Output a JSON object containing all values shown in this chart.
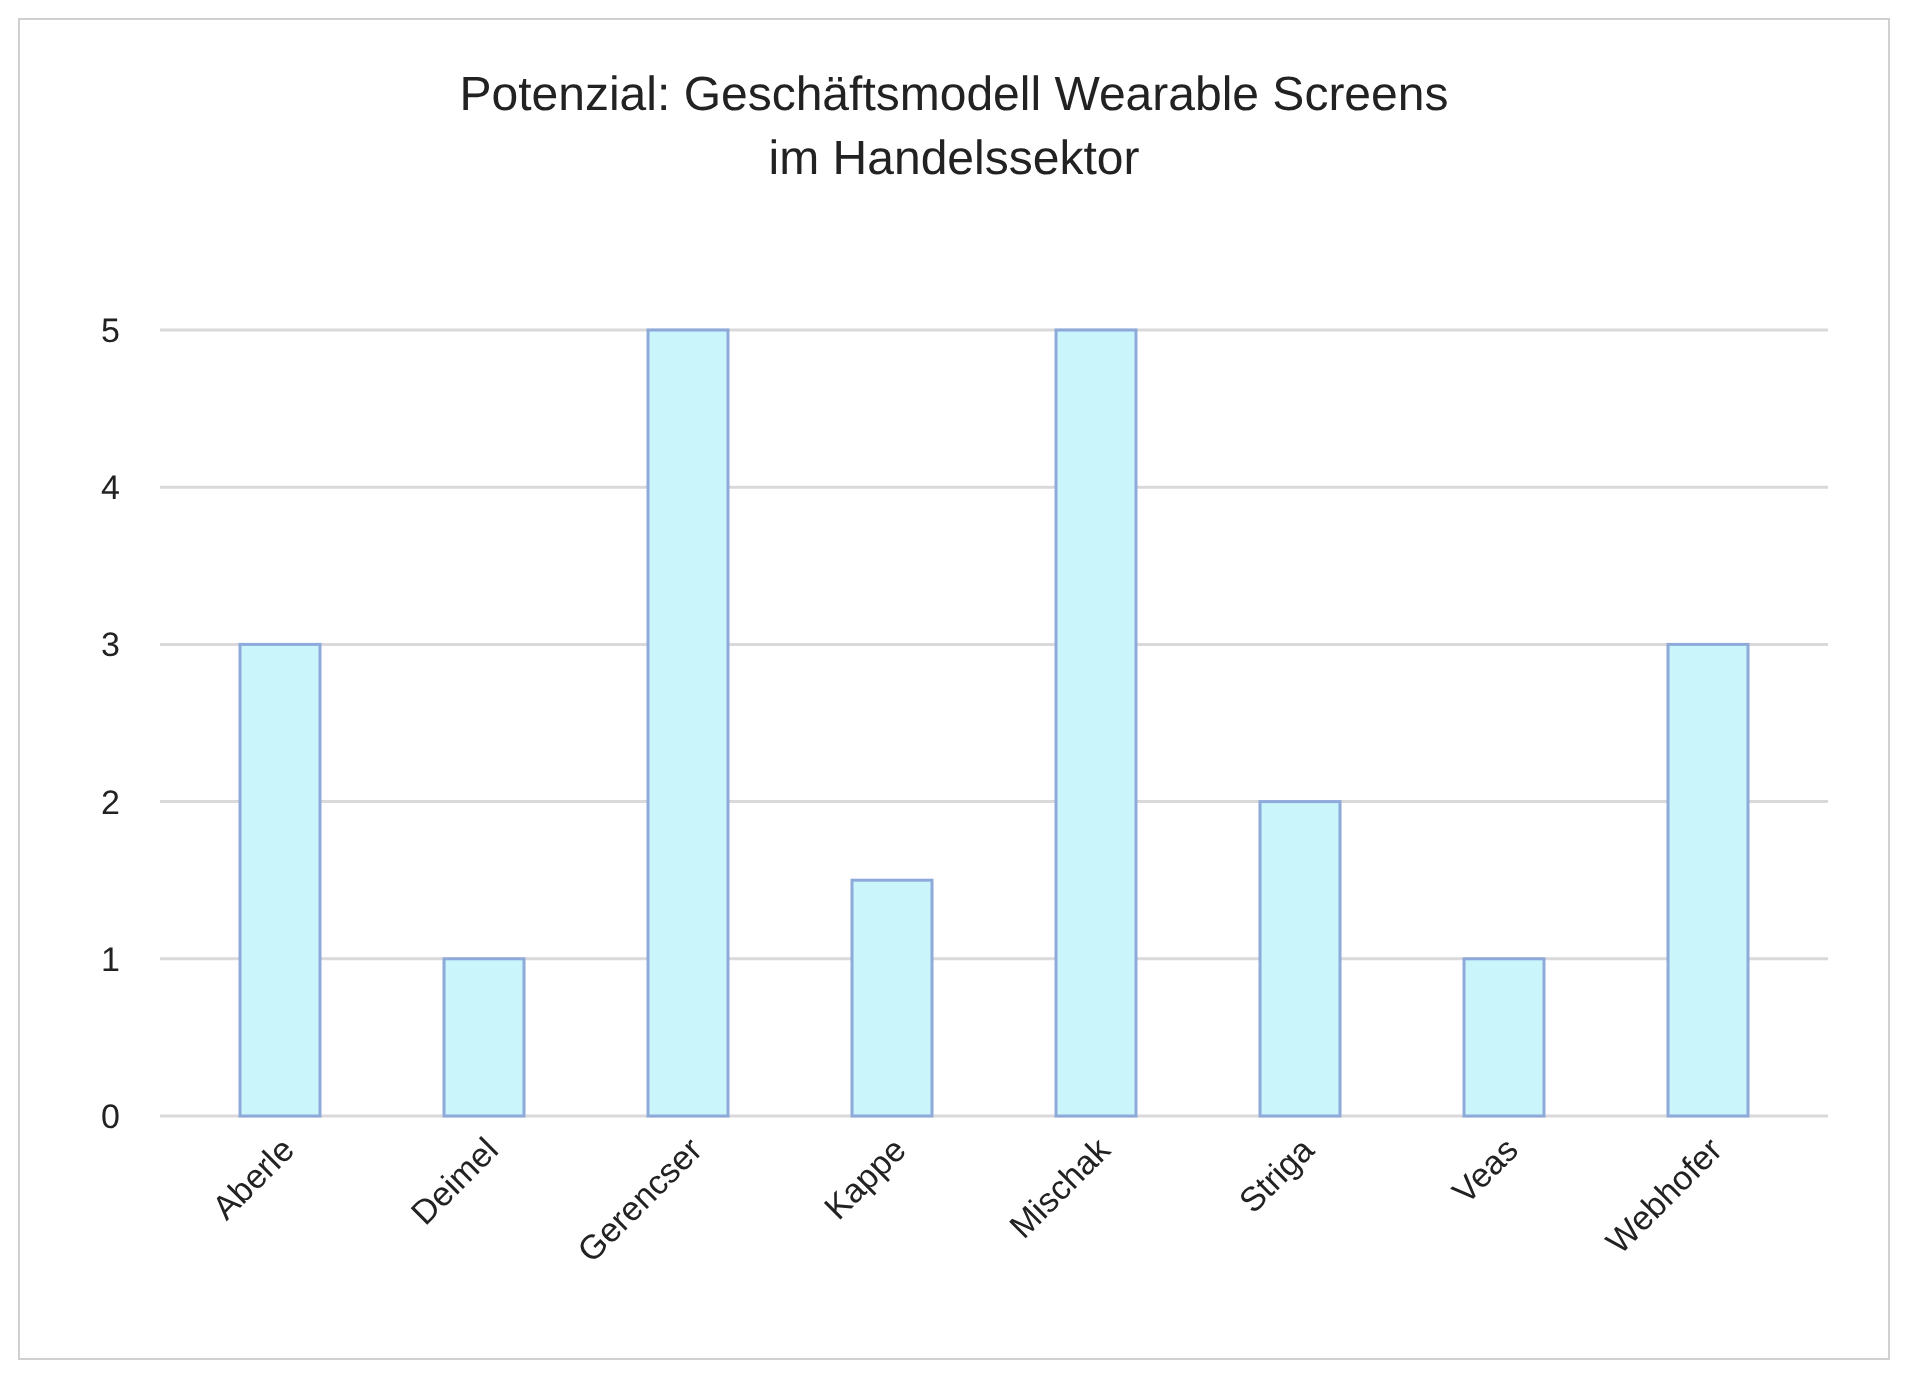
{
  "chart_data": {
    "type": "bar",
    "title": "Potenzial: Geschäftsmodell Wearable Screens\nim Handelssektor",
    "categories": [
      "Aberle",
      "Deimel",
      "Gerencser",
      "Kappe",
      "Mischak",
      "Striga",
      "Veas",
      "Webhofer"
    ],
    "values": [
      3,
      1,
      5,
      1.5,
      5,
      2,
      1,
      3
    ],
    "color": "#c9f5fb",
    "ylim": [
      0,
      5
    ],
    "yticks": [
      0,
      1,
      2,
      3,
      4,
      5
    ],
    "grid": "y"
  }
}
